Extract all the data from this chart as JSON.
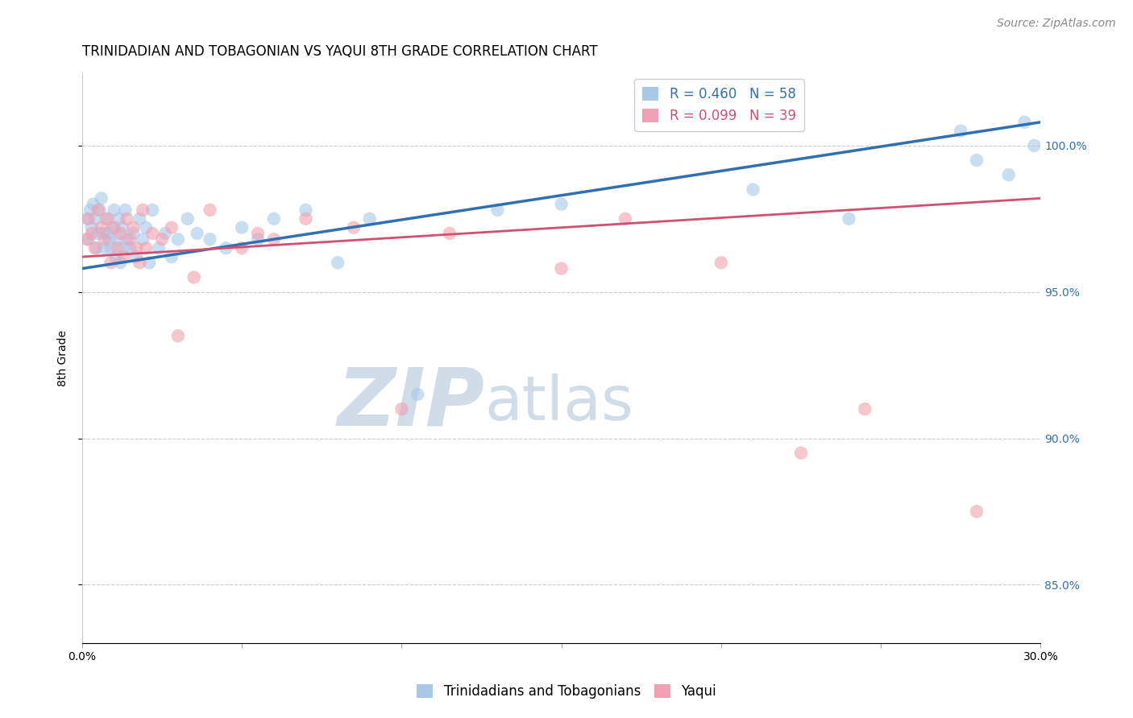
{
  "title": "TRINIDADIAN AND TOBAGONIAN VS YAQUI 8TH GRADE CORRELATION CHART",
  "source_text": "Source: ZipAtlas.com",
  "ylabel": "8th Grade",
  "xlim": [
    0.0,
    30.0
  ],
  "ylim": [
    83.0,
    102.5
  ],
  "xticks": [
    0.0,
    5.0,
    10.0,
    15.0,
    20.0,
    25.0,
    30.0
  ],
  "xtick_labels": [
    "0.0%",
    "",
    "",
    "",
    "",
    "",
    "30.0%"
  ],
  "yticks": [
    85.0,
    90.0,
    95.0,
    100.0
  ],
  "ytick_labels": [
    "85.0%",
    "90.0%",
    "95.0%",
    "100.0%"
  ],
  "legend_blue_label": "R = 0.460   N = 58",
  "legend_pink_label": "R = 0.099   N = 39",
  "blue_color": "#a8c8e8",
  "pink_color": "#f0a0b0",
  "blue_line_color": "#3070b0",
  "pink_line_color": "#d05070",
  "legend_text_blue": "#3070b0",
  "legend_text_pink": "#d05070",
  "watermark_zip": "ZIP",
  "watermark_atlas": "atlas",
  "watermark_color": "#d0dce8",
  "blue_scatter_x": [
    0.15,
    0.2,
    0.25,
    0.3,
    0.35,
    0.4,
    0.45,
    0.5,
    0.55,
    0.6,
    0.65,
    0.7,
    0.75,
    0.8,
    0.85,
    0.9,
    0.95,
    1.0,
    1.05,
    1.1,
    1.15,
    1.2,
    1.25,
    1.3,
    1.35,
    1.4,
    1.5,
    1.6,
    1.7,
    1.8,
    1.9,
    2.0,
    2.1,
    2.2,
    2.4,
    2.6,
    2.8,
    3.0,
    3.3,
    3.6,
    4.0,
    4.5,
    5.0,
    5.5,
    6.0,
    7.0,
    8.0,
    9.0,
    10.5,
    13.0,
    15.0,
    21.0,
    24.0,
    27.5,
    28.0,
    29.0,
    29.5,
    29.8
  ],
  "blue_scatter_y": [
    97.5,
    96.8,
    97.8,
    97.2,
    98.0,
    97.5,
    96.5,
    97.0,
    97.8,
    98.2,
    97.0,
    96.5,
    97.5,
    97.0,
    96.8,
    96.5,
    97.2,
    97.8,
    96.2,
    96.8,
    97.5,
    96.0,
    97.2,
    96.5,
    97.8,
    96.8,
    96.5,
    97.0,
    96.2,
    97.5,
    96.8,
    97.2,
    96.0,
    97.8,
    96.5,
    97.0,
    96.2,
    96.8,
    97.5,
    97.0,
    96.8,
    96.5,
    97.2,
    96.8,
    97.5,
    97.8,
    96.0,
    97.5,
    91.5,
    97.8,
    98.0,
    98.5,
    97.5,
    100.5,
    99.5,
    99.0,
    100.8,
    100.0
  ],
  "pink_scatter_x": [
    0.15,
    0.2,
    0.3,
    0.4,
    0.5,
    0.6,
    0.7,
    0.8,
    0.9,
    1.0,
    1.1,
    1.2,
    1.3,
    1.4,
    1.5,
    1.6,
    1.7,
    1.8,
    1.9,
    2.0,
    2.2,
    2.5,
    2.8,
    3.0,
    3.5,
    4.0,
    5.0,
    5.5,
    6.0,
    7.0,
    8.5,
    10.0,
    11.5,
    15.0,
    17.0,
    20.0,
    22.5,
    24.5,
    28.0
  ],
  "pink_scatter_y": [
    96.8,
    97.5,
    97.0,
    96.5,
    97.8,
    97.2,
    96.8,
    97.5,
    96.0,
    97.2,
    96.5,
    97.0,
    96.2,
    97.5,
    96.8,
    97.2,
    96.5,
    96.0,
    97.8,
    96.5,
    97.0,
    96.8,
    97.2,
    93.5,
    95.5,
    97.8,
    96.5,
    97.0,
    96.8,
    97.5,
    97.2,
    91.0,
    97.0,
    95.8,
    97.5,
    96.0,
    89.5,
    91.0,
    87.5
  ],
  "blue_trend_x": [
    0.0,
    30.0
  ],
  "blue_trend_y": [
    95.8,
    100.8
  ],
  "pink_trend_x": [
    0.0,
    30.0
  ],
  "pink_trend_y": [
    96.2,
    98.2
  ],
  "grid_color": "#cccccc",
  "title_fontsize": 12,
  "axis_label_fontsize": 10,
  "tick_fontsize": 10,
  "legend_fontsize": 12,
  "source_fontsize": 10
}
